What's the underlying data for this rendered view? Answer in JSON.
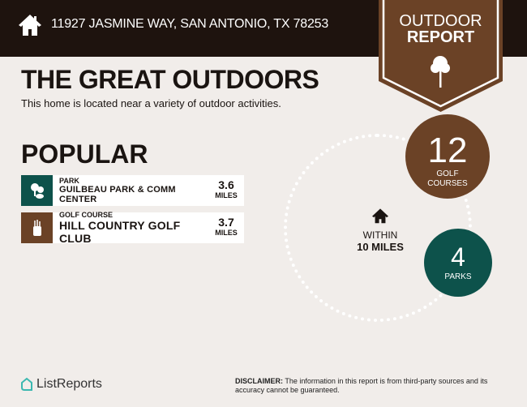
{
  "header": {
    "address": "11927 JASMINE WAY, SAN ANTONIO, TX 78253",
    "badge_line1": "OUTDOOR",
    "badge_line2": "REPORT"
  },
  "main": {
    "title": "THE GREAT OUTDOORS",
    "subtitle": "This home is located near a variety of outdoor activities.",
    "popular_heading": "POPULAR",
    "items": [
      {
        "category": "PARK",
        "name": "GUILBEAU PARK & COMM CENTER",
        "distance": "3.6",
        "unit": "MILES",
        "icon": "park-icon",
        "color": "#0d524b"
      },
      {
        "category": "GOLF COURSE",
        "name": "HILL COUNTRY GOLF CLUB",
        "distance": "3.7",
        "unit": "MILES",
        "icon": "golf-bag-icon",
        "color": "#6b4226"
      }
    ]
  },
  "summary": {
    "within_label": "WITHIN",
    "radius": "10 MILES",
    "golf": {
      "count": "12",
      "label1": "GOLF",
      "label2": "COURSES",
      "color": "#6b4226"
    },
    "parks": {
      "count": "4",
      "label": "PARKS",
      "color": "#0d524b"
    }
  },
  "footer": {
    "logo": "ListReports",
    "disclaimer_label": "DISCLAIMER:",
    "disclaimer_text": " The information in this report is from third-party sources and its accuracy cannot be guaranteed."
  }
}
